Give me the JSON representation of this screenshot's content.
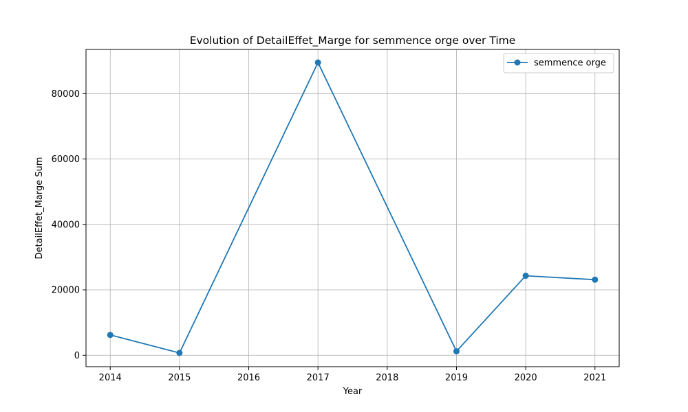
{
  "chart_data": {
    "type": "line",
    "title": "Evolution of DetailEffet_Marge for semmence orge over Time",
    "xlabel": "Year",
    "ylabel": "DetailEffet_Marge Sum",
    "x": [
      2014,
      2015,
      2017,
      2019,
      2020,
      2021
    ],
    "series": [
      {
        "name": "semmence orge",
        "values": [
          6200,
          700,
          89500,
          1200,
          24300,
          23100
        ],
        "color": "#1f77b4",
        "marker": "circle"
      }
    ],
    "xlim": [
      2013.65,
      2021.35
    ],
    "ylim": [
      -3500,
      93500
    ],
    "x_ticks": [
      2014,
      2015,
      2016,
      2017,
      2018,
      2019,
      2020,
      2021
    ],
    "y_ticks": [
      0,
      20000,
      40000,
      60000,
      80000
    ],
    "grid": true,
    "legend_position": "top-right"
  }
}
